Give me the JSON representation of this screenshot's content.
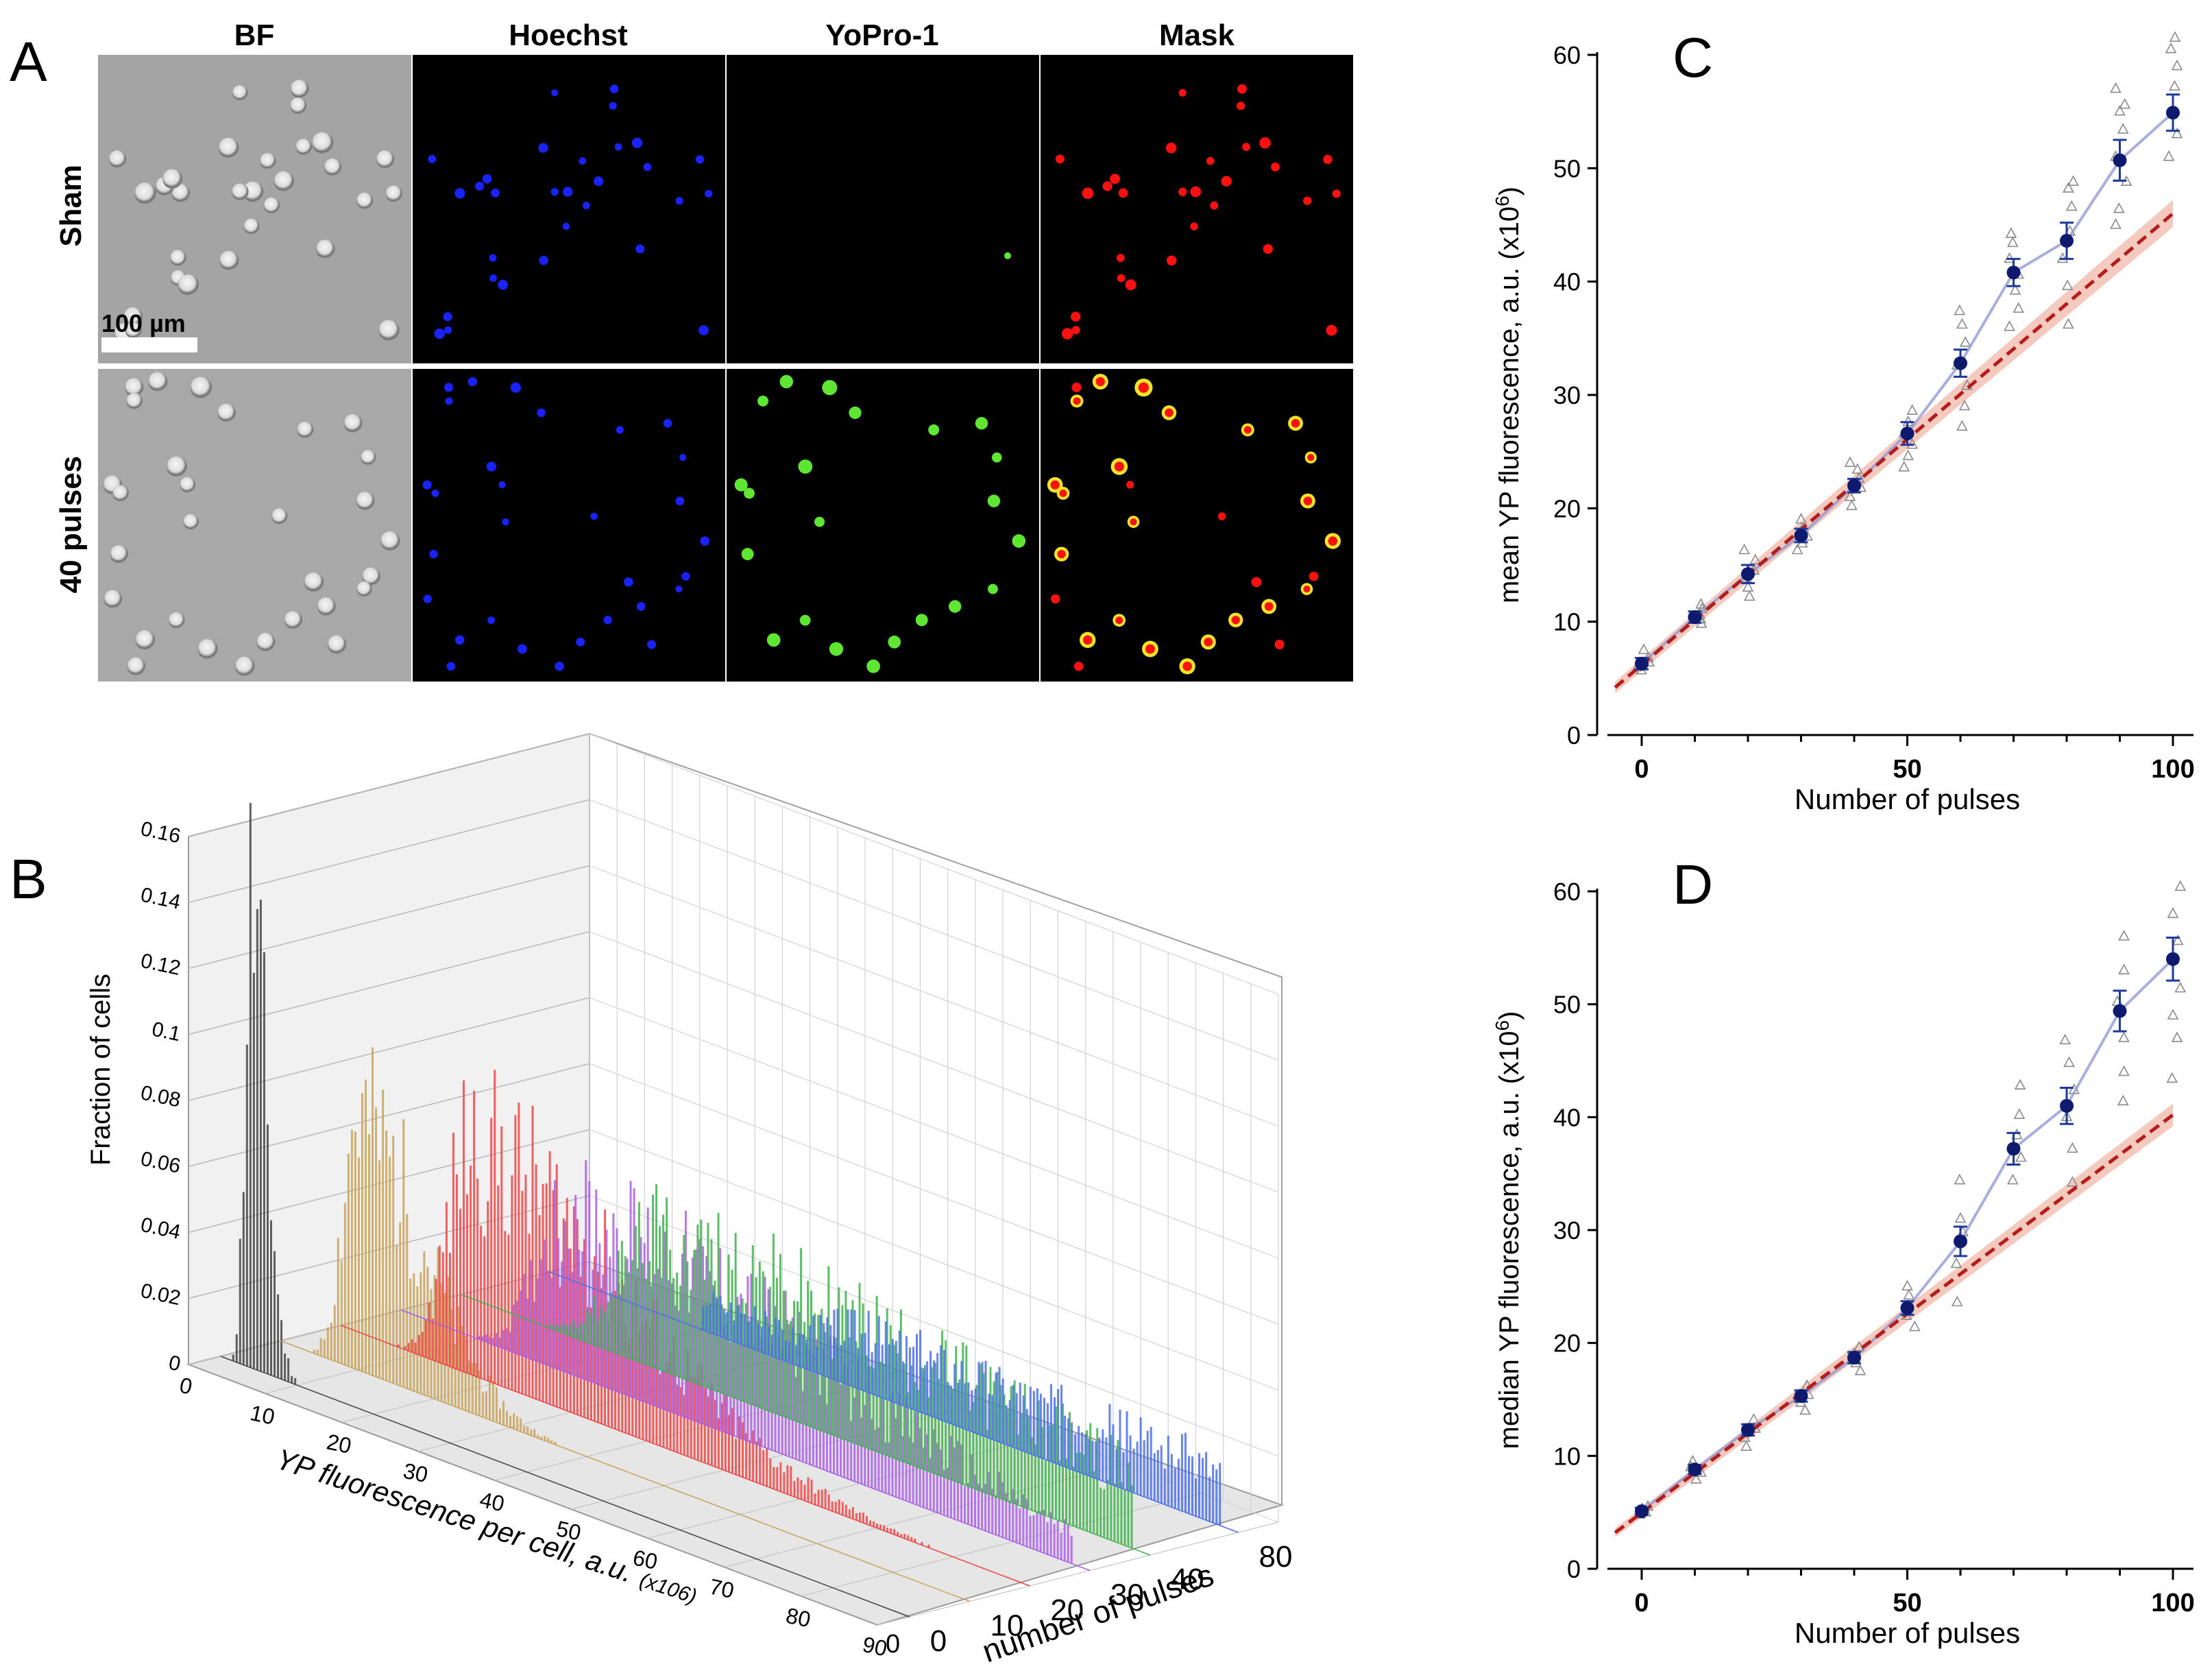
{
  "panel_letters": {
    "a": "A",
    "b": "B",
    "c": "C",
    "d": "D"
  },
  "panel_a": {
    "columns": [
      "BF",
      "Hoechst",
      "YoPro-1",
      "Mask"
    ],
    "rows": [
      "Sham",
      "40 pulses"
    ],
    "scale_bar": "100 µm",
    "colors": {
      "hoechst": "#1a22ff",
      "yopro": "#5ee632",
      "mask": "#ff1010",
      "mask_ring": "#f4e32a",
      "bf_bg": "#a3a3a3"
    }
  },
  "panel_b": {
    "z_label": "Fraction of cells",
    "x_label_main": "YP fluorescence per cell, a.u.",
    "x_label_unit": "(x10",
    "x_label_exp": "6",
    "y_label": "number of pulses",
    "z_ticks": [
      "0",
      "0.02",
      "0.04",
      "0.06",
      "0.08",
      "0.1",
      "0.12",
      "0.14",
      "0.16"
    ],
    "x_ticks": [
      "0",
      "10",
      "20",
      "30",
      "40",
      "50",
      "60",
      "70",
      "80",
      "90"
    ],
    "series": [
      {
        "label": "0",
        "color": "#444444"
      },
      {
        "label": "10",
        "color": "#9c7a1a"
      },
      {
        "label": "20",
        "color": "#cc1b1b"
      },
      {
        "label": "30",
        "color": "#8a2fc9"
      },
      {
        "label": "40",
        "color": "#2f8a2f"
      },
      {
        "label": "80",
        "color": "#1f45cc"
      }
    ]
  },
  "chart_data": [
    {
      "type": "histogram-3d",
      "title": "",
      "xlabel": "YP fluorescence per cell, a.u. (x106)",
      "ylabel": "number of pulses",
      "zlabel": "Fraction of cells",
      "xlim": [
        0,
        90
      ],
      "zlim": [
        0,
        0.16
      ],
      "series": [
        {
          "name": "0",
          "peak_x": 4,
          "peak_fraction": 0.155,
          "color": "#444444"
        },
        {
          "name": "10",
          "peak_x": 10,
          "peak_fraction": 0.085,
          "color": "#c8a35a"
        },
        {
          "name": "20",
          "peak_x": 17,
          "peak_fraction": 0.078,
          "color": "#f04545"
        },
        {
          "name": "30",
          "peak_x": 22,
          "peak_fraction": 0.055,
          "color": "#a85fe6"
        },
        {
          "name": "40",
          "peak_x": 26,
          "peak_fraction": 0.045,
          "color": "#3fb24b"
        },
        {
          "name": "80",
          "peak_x": 40,
          "peak_fraction": 0.02,
          "color": "#4a6ff0"
        }
      ]
    },
    {
      "type": "scatter",
      "title": "C",
      "xlabel": "Number of pulses",
      "ylabel": "mean YP fluorescence, a.u. (x10",
      "ylabel_exp": "6",
      "ylabel_end": ")",
      "xlim": [
        0,
        100
      ],
      "ylim": [
        0,
        60
      ],
      "xticks": [
        0,
        50,
        100
      ],
      "yticks": [
        0,
        10,
        20,
        30,
        40,
        50,
        60
      ],
      "x": [
        0,
        10,
        20,
        30,
        40,
        50,
        60,
        70,
        80,
        90,
        100
      ],
      "mean": [
        6.3,
        10.4,
        14.2,
        17.6,
        22.0,
        26.6,
        32.8,
        40.8,
        43.6,
        50.7,
        54.9
      ],
      "err": [
        0.5,
        0.5,
        0.8,
        0.6,
        0.6,
        1.0,
        1.2,
        1.2,
        1.6,
        1.8,
        1.6
      ],
      "replicates": [
        [
          5.7,
          6.0,
          6.4,
          6.8,
          7.5
        ],
        [
          9.8,
          10.2,
          10.6,
          11.1,
          11.5
        ],
        [
          12.2,
          13.0,
          13.8,
          14.5,
          15.4,
          16.3
        ],
        [
          16.3,
          16.9,
          17.5,
          18.2,
          19.0
        ],
        [
          20.2,
          21.0,
          21.8,
          22.6,
          23.4,
          24.0
        ],
        [
          23.6,
          24.6,
          25.6,
          26.6,
          27.6,
          28.6
        ],
        [
          27.2,
          29.0,
          30.8,
          32.6,
          34.6,
          36.2,
          37.4
        ],
        [
          36.0,
          37.6,
          39.2,
          40.6,
          42.0,
          43.4,
          44.2
        ],
        [
          36.2,
          39.6,
          42.0,
          44.4,
          46.6,
          48.2,
          48.8
        ],
        [
          45.0,
          46.4,
          48.8,
          51.0,
          53.4,
          55.0,
          55.6,
          57.0
        ],
        [
          51.0,
          53.0,
          55.0,
          57.2,
          59.0,
          60.5,
          61.5
        ]
      ],
      "fit": {
        "x": [
          -5,
          100
        ],
        "y": [
          4.2,
          46.0
        ],
        "band": [
          0.5,
          1.2
        ]
      }
    },
    {
      "type": "scatter",
      "title": "D",
      "xlabel": "Number of pulses",
      "ylabel": "median YP fluorescence, a.u. (x10",
      "ylabel_exp": "6",
      "ylabel_end": ")",
      "xlim": [
        0,
        100
      ],
      "ylim": [
        0,
        60
      ],
      "xticks": [
        0,
        50,
        100
      ],
      "yticks": [
        0,
        10,
        20,
        30,
        40,
        50,
        60
      ],
      "x": [
        0,
        10,
        20,
        30,
        40,
        50,
        60,
        70,
        80,
        90,
        100
      ],
      "mean": [
        5.1,
        8.8,
        12.3,
        15.3,
        18.7,
        23.1,
        29.0,
        37.2,
        41.0,
        49.4,
        54.0
      ],
      "err": [
        0.3,
        0.4,
        0.5,
        0.5,
        0.5,
        0.6,
        1.3,
        1.4,
        1.6,
        1.8,
        1.9
      ],
      "replicates": [
        [
          4.8,
          5.0,
          5.3,
          5.5
        ],
        [
          7.9,
          8.5,
          9.0,
          9.5
        ],
        [
          10.8,
          11.6,
          12.4,
          13.2
        ],
        [
          14.0,
          14.7,
          15.4,
          16.2
        ],
        [
          17.5,
          18.2,
          19.0,
          19.6
        ],
        [
          21.4,
          22.4,
          23.3,
          24.2,
          25.0
        ],
        [
          23.6,
          27.0,
          29.8,
          31.0,
          34.4
        ],
        [
          34.4,
          36.4,
          38.4,
          40.2,
          42.8
        ],
        [
          34.2,
          37.2,
          40.0,
          42.4,
          44.8,
          46.8
        ],
        [
          41.4,
          44.0,
          47.0,
          50.2,
          53.0,
          56.0
        ],
        [
          43.4,
          47.0,
          49.0,
          51.4,
          55.6,
          58.0,
          60.4
        ]
      ],
      "fit": {
        "x": [
          -5,
          100
        ],
        "y": [
          3.2,
          40.2
        ],
        "band": [
          0.4,
          1.0
        ]
      }
    }
  ]
}
